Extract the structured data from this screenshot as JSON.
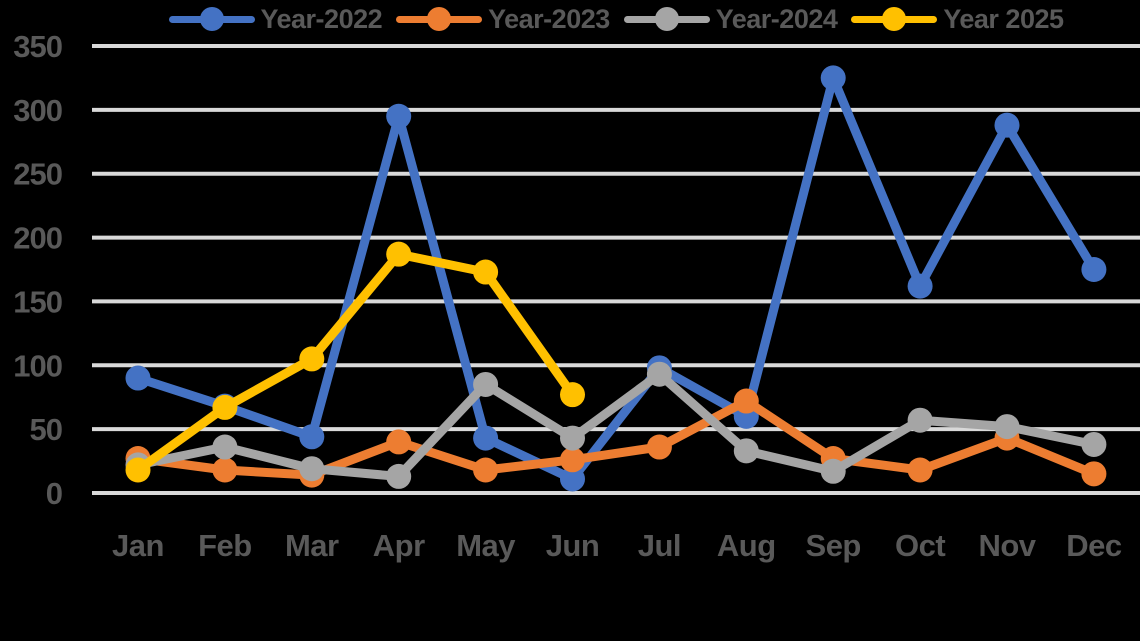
{
  "chart_data": {
    "type": "line",
    "title": "",
    "xlabel": "",
    "ylabel": "",
    "categories": [
      "Jan",
      "Feb",
      "Mar",
      "Apr",
      "May",
      "Jun",
      "Jul",
      "Aug",
      "Sep",
      "Oct",
      "Nov",
      "Dec"
    ],
    "series": [
      {
        "name": "Year-2022",
        "color": "#4472C4",
        "values": [
          90,
          68,
          44,
          295,
          43,
          11,
          98,
          60,
          325,
          162,
          288,
          175
        ]
      },
      {
        "name": "Year-2023",
        "color": "#ED7D31",
        "values": [
          27,
          18,
          14,
          40,
          18,
          26,
          36,
          72,
          27,
          18,
          43,
          15
        ]
      },
      {
        "name": "Year-2024",
        "color": "#A5A5A5",
        "values": [
          22,
          36,
          19,
          13,
          85,
          43,
          93,
          33,
          17,
          57,
          52,
          38
        ]
      },
      {
        "name": "Year 2025",
        "color": "#FFC000",
        "values": [
          18,
          67,
          105,
          187,
          173,
          77,
          null,
          null,
          null,
          null,
          null,
          null
        ]
      }
    ],
    "y_ticks": [
      0,
      50,
      100,
      150,
      200,
      250,
      300,
      350
    ],
    "ylim": [
      0,
      350
    ],
    "grid": true,
    "legend_position": "top",
    "marker": "circle"
  },
  "colors": {
    "background": "#000000",
    "gridline": "#D9D9D9",
    "axis_text": "#595959"
  }
}
